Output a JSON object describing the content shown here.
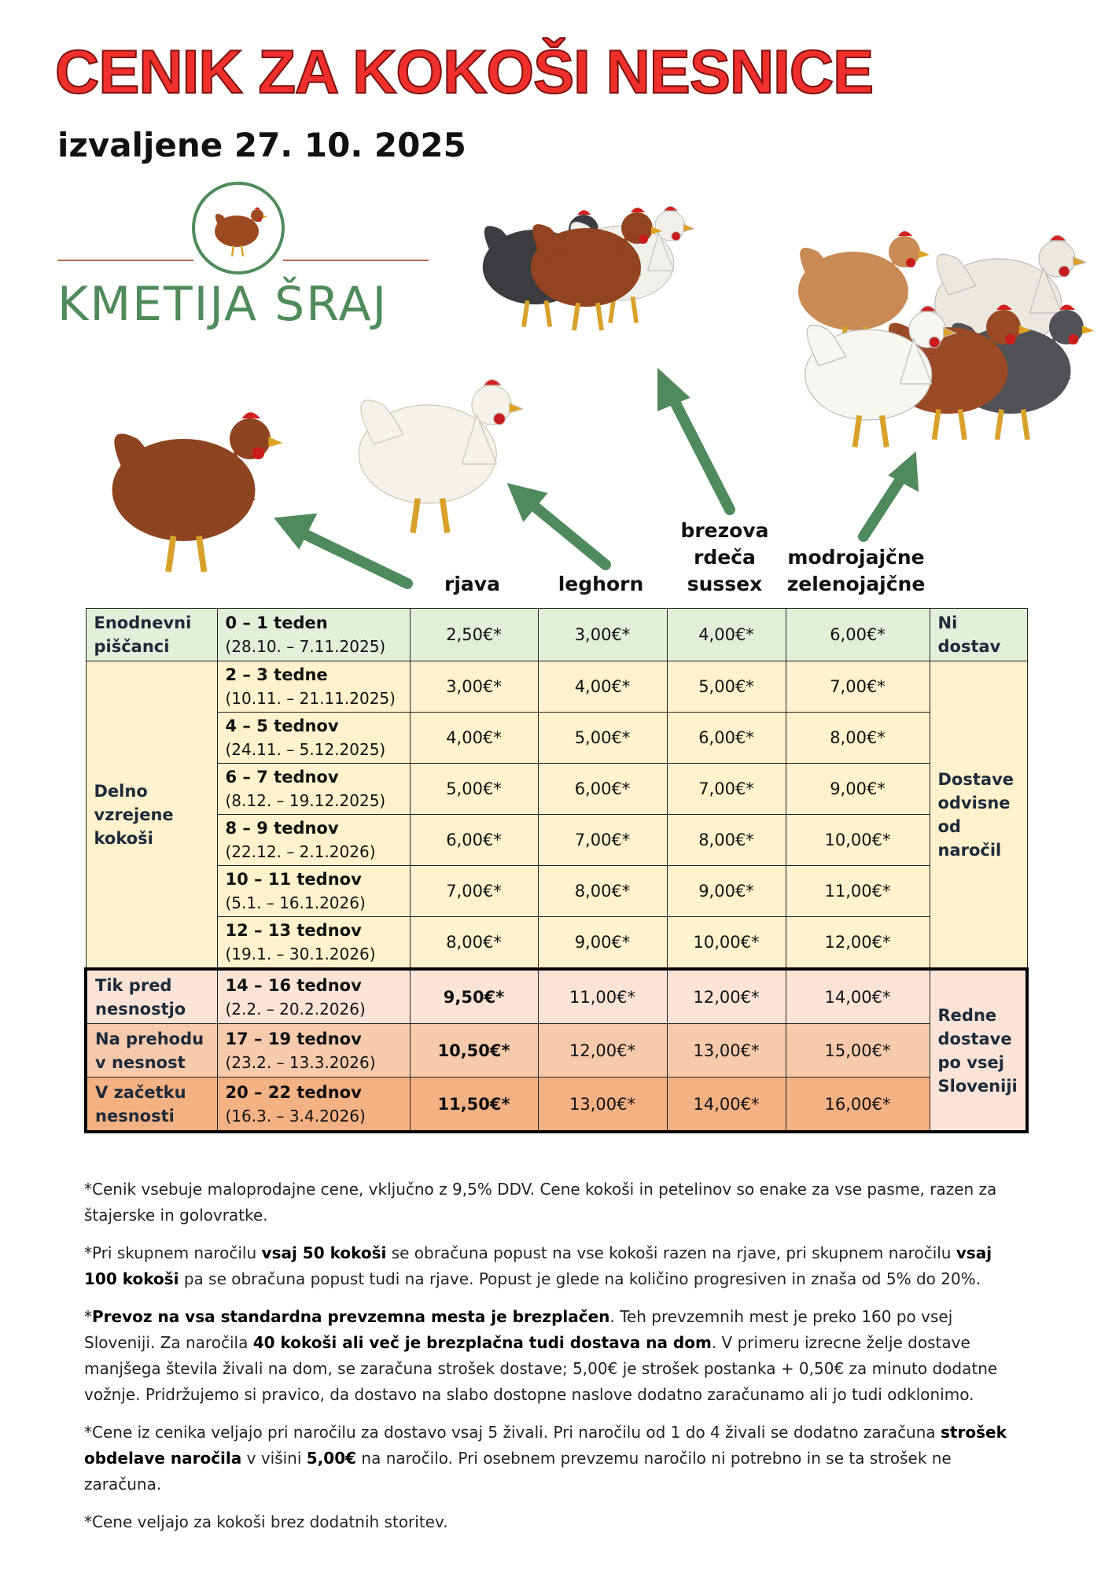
{
  "header": {
    "title": "CENIK ZA KOKOŠI NESNICE",
    "subtitle": "izvaljene 27. 10. 2025",
    "logo": "KMETIJA ŠRAJ"
  },
  "table": {
    "columns": [
      "rjava",
      "leghorn",
      "brezova\nrdeča\nsussex",
      "modrojajčne\nzelenojajčne"
    ],
    "sections": [
      {
        "delivery": "Ni dostav",
        "groups": [
          {
            "label": "Enodnevni piščanci",
            "rows": [
              {
                "age": "0 – 1 teden",
                "dates": "(28.10. – 7.11.2025)",
                "prices": [
                  "2,50€*",
                  "3,00€*",
                  "4,00€*",
                  "6,00€*"
                ]
              }
            ]
          }
        ]
      },
      {
        "delivery": "Dostave odvisne od naročil",
        "groups": [
          {
            "label": "Delno vzrejene kokoši",
            "rows": [
              {
                "age": "2 – 3 tedne",
                "dates": "(10.11. – 21.11.2025)",
                "prices": [
                  "3,00€*",
                  "4,00€*",
                  "5,00€*",
                  "7,00€*"
                ]
              },
              {
                "age": "4 – 5 tednov",
                "dates": "(24.11. – 5.12.2025)",
                "prices": [
                  "4,00€*",
                  "5,00€*",
                  "6,00€*",
                  "8,00€*"
                ]
              },
              {
                "age": "6 – 7 tednov",
                "dates": "(8.12. – 19.12.2025)",
                "prices": [
                  "5,00€*",
                  "6,00€*",
                  "7,00€*",
                  "9,00€*"
                ]
              },
              {
                "age": "8 – 9 tednov",
                "dates": "(22.12. – 2.1.2026)",
                "prices": [
                  "6,00€*",
                  "7,00€*",
                  "8,00€*",
                  "10,00€*"
                ]
              },
              {
                "age": "10 – 11 tednov",
                "dates": "(5.1. – 16.1.2026)",
                "prices": [
                  "7,00€*",
                  "8,00€*",
                  "9,00€*",
                  "11,00€*"
                ]
              },
              {
                "age": "12 – 13 tednov",
                "dates": "(19.1. – 30.1.2026)",
                "prices": [
                  "8,00€*",
                  "9,00€*",
                  "10,00€*",
                  "12,00€*"
                ]
              }
            ]
          }
        ]
      },
      {
        "delivery": "Redne dostave po vsej Sloveniji",
        "groups": [
          {
            "label": "Tik pred nesnostjo",
            "rows": [
              {
                "age": "14 – 16 tednov",
                "dates": "(2.2. – 20.2.2026)",
                "prices": [
                  "9,50€*",
                  "11,00€*",
                  "12,00€*",
                  "14,00€*"
                ]
              }
            ]
          },
          {
            "label": "Na prehodu v nesnost",
            "rows": [
              {
                "age": "17 – 19 tednov",
                "dates": "(23.2. – 13.3.2026)",
                "prices": [
                  "10,50€*",
                  "12,00€*",
                  "13,00€*",
                  "15,00€*"
                ]
              }
            ]
          },
          {
            "label": "V začetku nesnosti",
            "rows": [
              {
                "age": "20 – 22 tednov",
                "dates": "(16.3. – 3.4.2026)",
                "prices": [
                  "11,50€*",
                  "13,00€*",
                  "14,00€*",
                  "16,00€*"
                ]
              }
            ]
          }
        ]
      }
    ]
  },
  "notes": [
    [
      {
        "text": "*Cenik vsebuje maloprodajne cene, vključno z 9,5% DDV. Cene kokoši in petelinov so enake za vse pasme, razen za štajerske in golovratke.",
        "bold": false
      }
    ],
    [
      {
        "text": "*Pri skupnem naročilu ",
        "bold": false
      },
      {
        "text": "vsaj 50 kokoši",
        "bold": true
      },
      {
        "text": " se obračuna popust na vse kokoši razen na rjave, pri skupnem naročilu ",
        "bold": false
      },
      {
        "text": "vsaj 100 kokoši",
        "bold": true
      },
      {
        "text": " pa se obračuna popust tudi na rjave. Popust je glede na količino progresiven in znaša od 5% do 20%.",
        "bold": false
      }
    ],
    [
      {
        "text": "*",
        "bold": false
      },
      {
        "text": "Prevoz na vsa standardna prevzemna mesta je brezplačen",
        "bold": true
      },
      {
        "text": ". Teh prevzemnih mest je preko 160 po vsej Sloveniji. Za naročila ",
        "bold": false
      },
      {
        "text": "40 kokoši ali več je brezplačna tudi dostava na dom",
        "bold": true
      },
      {
        "text": ". V primeru izrecne želje dostave manjšega števila živali na dom, se zaračuna strošek dostave; 5,00€ je strošek postanka + 0,50€ za minuto dodatne vožnje. Pridržujemo si pravico, da dostavo na slabo dostopne naslove dodatno zaračunamo ali jo tudi odklonimo.",
        "bold": false
      }
    ],
    [
      {
        "text": "*Cene iz cenika veljajo pri naročilu za dostavo vsaj 5 živali. Pri naročilu od 1 do 4 živali se dodatno zaračuna ",
        "bold": false
      },
      {
        "text": "strošek obdelave naročila",
        "bold": true
      },
      {
        "text": " v višini ",
        "bold": false
      },
      {
        "text": "5,00€",
        "bold": true
      },
      {
        "text": " na naročilo. Pri osebnem prevzemu naročilo ni potrebno in se ta strošek ne zaračuna.",
        "bold": false
      }
    ],
    [
      {
        "text": "*Cene veljajo za kokoši brez dodatnih storitev.",
        "bold": false
      }
    ]
  ]
}
